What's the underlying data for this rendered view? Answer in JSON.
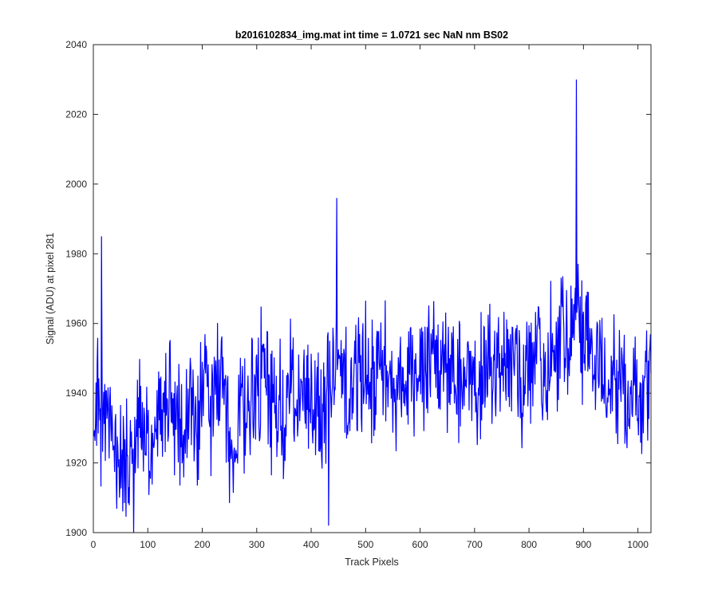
{
  "chart_data": {
    "type": "line",
    "title": "b2016102834_img.mat int time = 1.0721 sec  NaN nm BS02",
    "xlabel": "Track Pixels",
    "ylabel": "Signal (ADU) at pixel 281",
    "xlim": [
      0,
      1024
    ],
    "ylim": [
      1900,
      2040
    ],
    "xticks": [
      0,
      100,
      200,
      300,
      400,
      500,
      600,
      700,
      800,
      900,
      1000
    ],
    "yticks": [
      1900,
      1920,
      1940,
      1960,
      1980,
      2000,
      2020,
      2040
    ],
    "grid": false,
    "legend": "none",
    "line_color": "#0000ff",
    "series": [
      {
        "x_start": 1,
        "x_step": 10,
        "values": [
          1940,
          1934,
          1928,
          1930,
          1921,
          1925,
          1918,
          1922,
          1935,
          1930,
          1929,
          1927,
          1930,
          1937,
          1936,
          1931,
          1927,
          1930,
          1938,
          1930,
          1939,
          1937,
          1935,
          1945,
          1942,
          1927,
          1920,
          1935,
          1932,
          1938,
          1942,
          1947,
          1942,
          1934,
          1937,
          1935,
          1947,
          1936,
          1938,
          1940,
          1933,
          1938,
          1937,
          1942,
          1946,
          1944,
          1948,
          1937,
          1946,
          1944,
          1949,
          1942,
          1951,
          1947,
          1948,
          1944,
          1941,
          1946,
          1948,
          1944,
          1951,
          1944,
          1949,
          1952,
          1941,
          1946,
          1946,
          1943,
          1952,
          1945,
          1944,
          1941,
          1947,
          1945,
          1952,
          1948,
          1948,
          1951,
          1946,
          1942,
          1948,
          1951,
          1947,
          1945,
          1957,
          1952,
          1958,
          1951,
          1961,
          1960,
          1953,
          1952,
          1951,
          1947,
          1941,
          1949,
          1944,
          1947,
          1942,
          1943,
          1935,
          1941,
          1944
        ]
      }
    ],
    "annotations": [
      {
        "x": 74,
        "y": 1900,
        "note": "minimum"
      },
      {
        "x": 887,
        "y": 2030,
        "note": "spike"
      },
      {
        "x": 447,
        "y": 1996,
        "note": "peak"
      },
      {
        "x": 15,
        "y": 1985,
        "note": "peak"
      },
      {
        "x": 432,
        "y": 1902,
        "note": "dip"
      }
    ]
  }
}
